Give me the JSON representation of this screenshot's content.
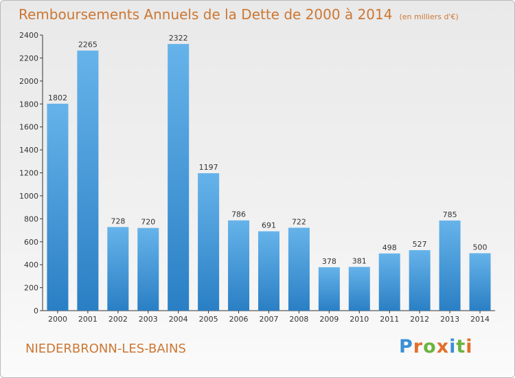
{
  "header": {
    "title": "Remboursements Annuels de la Dette de 2000 à 2014",
    "unit": "(en milliers d'€)"
  },
  "footer": {
    "commune": "NIEDERBRONN-LES-BAINS",
    "logo": "Proxiti"
  },
  "colors": {
    "bar_light": "#66b3ea",
    "bar_dark": "#2a7fc4",
    "title": "#cc7733",
    "logo": [
      "#3b8fd6",
      "#e36f2a",
      "#6cb33e",
      "#e36f2a",
      "#3b8fd6",
      "#6cb33e",
      "#e36f2a"
    ]
  },
  "chart_data": {
    "type": "bar",
    "title": "Remboursements Annuels de la Dette de 2000 à 2014",
    "xlabel": "",
    "ylabel": "",
    "categories": [
      "2000",
      "2001",
      "2002",
      "2003",
      "2004",
      "2005",
      "2006",
      "2007",
      "2008",
      "2009",
      "2010",
      "2011",
      "2012",
      "2013",
      "2014"
    ],
    "values": [
      1802,
      2265,
      728,
      720,
      2322,
      1197,
      786,
      691,
      722,
      378,
      381,
      498,
      527,
      785,
      500
    ],
    "ylim": [
      0,
      2400
    ],
    "yticks": [
      0,
      200,
      400,
      600,
      800,
      1000,
      1200,
      1400,
      1600,
      1800,
      2000,
      2200,
      2400
    ],
    "grid": false,
    "data_labels": true
  }
}
